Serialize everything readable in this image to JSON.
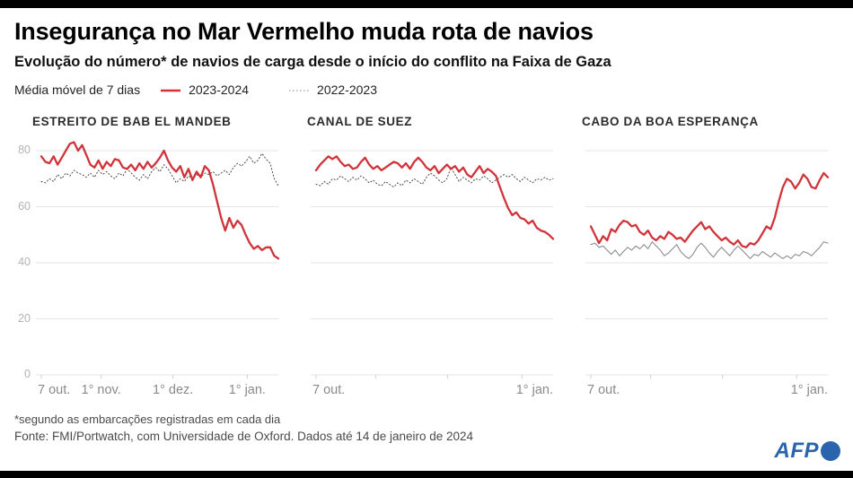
{
  "header": {
    "title": "Insegurança no Mar Vermelho muda rota de navios",
    "subtitle": "Evolução do número* de navios de carga desde o início do conflito na Faixa de Gaza"
  },
  "legend": {
    "label": "Média móvel de 7 dias",
    "series": [
      {
        "name": "2023-2024",
        "color": "#d0343a",
        "style": "solid"
      },
      {
        "name": "2022-2023",
        "color": "#b5b5b5",
        "style": "dotted"
      }
    ]
  },
  "footer": {
    "note": "*segundo as embarcações registradas em cada dia",
    "source": "Fonte: FMI/Portwatch, com Universidade de Oxford. Dados até 14 de janeiro de 2024",
    "logo_text": "AFP",
    "logo_color": "#2a64ad"
  },
  "chart_data": [
    {
      "type": "line",
      "title": "ESTREITO DE BAB EL MANDEB",
      "ylabel": "",
      "xlabel": "",
      "ylim": [
        0,
        84
      ],
      "y_ticks": [
        0,
        20,
        40,
        60,
        80
      ],
      "show_y_labels": true,
      "day_span": 99,
      "x_ticks": [
        {
          "text": "7 out.",
          "day": 0,
          "align": "left"
        },
        {
          "text": "1° nov.",
          "day": 25,
          "align": "center"
        },
        {
          "text": "1° dez.",
          "day": 55,
          "align": "center"
        },
        {
          "text": "1° jan.",
          "day": 86,
          "align": "center"
        }
      ],
      "series": [
        {
          "name": "2022-2023",
          "color": "#4a4a4a",
          "style": "dotted",
          "width": 1,
          "values": [
            69,
            68.5,
            70,
            69,
            71.5,
            70,
            72,
            71,
            73,
            72,
            71.5,
            70.5,
            72,
            70.5,
            73,
            71.5,
            72.5,
            71,
            70,
            72,
            71,
            73.5,
            72,
            70.5,
            69.5,
            71.5,
            70,
            72.5,
            74,
            72.5,
            75,
            73.5,
            71,
            68.5,
            70,
            69,
            71,
            70,
            71.5,
            70.5,
            72,
            71.5,
            72.5,
            71,
            72,
            73,
            71.5,
            74,
            75.5,
            74.5,
            76,
            78,
            75.5,
            76.5,
            79,
            77,
            75.5,
            70,
            67.5
          ]
        },
        {
          "name": "2023-2024",
          "color": "#d0343a",
          "style": "solid",
          "width": 2.3,
          "values": [
            78,
            76,
            75.5,
            78,
            75,
            77.5,
            80,
            82.5,
            83,
            80,
            82,
            78.5,
            75,
            74,
            76.5,
            73.5,
            76,
            74.5,
            77,
            76.5,
            74,
            73.5,
            75,
            73,
            75.5,
            73.5,
            76,
            74,
            75.5,
            77.5,
            80,
            76.5,
            74,
            72.5,
            74.5,
            70.5,
            73.5,
            69.5,
            72.5,
            70.5,
            74.5,
            73,
            68,
            62,
            56,
            51.5,
            56,
            52.5,
            55,
            53.5,
            50,
            47,
            45,
            46,
            44.5,
            45.5,
            45.5,
            42.5,
            41.5
          ]
        }
      ]
    },
    {
      "type": "line",
      "title": "CANAL DE SUEZ",
      "ylabel": "",
      "xlabel": "",
      "ylim": [
        0,
        84
      ],
      "y_ticks": [
        0,
        20,
        40,
        60,
        80
      ],
      "show_y_labels": false,
      "day_span": 99,
      "x_ticks": [
        {
          "text": "7 out.",
          "day": 0,
          "align": "left"
        },
        {
          "text": "1° jan.",
          "day": 86,
          "align": "right"
        }
      ],
      "series": [
        {
          "name": "2022-2023",
          "color": "#4a4a4a",
          "style": "dotted",
          "width": 1,
          "values": [
            68,
            67.5,
            69,
            68,
            70,
            69.5,
            71,
            70,
            69,
            70.5,
            69.5,
            71,
            70,
            68.5,
            69.5,
            68,
            67.5,
            69,
            68,
            67,
            68.5,
            67.5,
            69.5,
            68.5,
            70,
            69,
            68,
            70.5,
            72,
            71,
            69.5,
            68.5,
            70,
            74,
            71.5,
            69,
            70.5,
            69.5,
            68.5,
            70,
            69.5,
            71,
            70,
            68.5,
            69.5,
            70.5,
            71.5,
            70.5,
            71.5,
            70,
            69,
            70.5,
            69.5,
            68.5,
            70,
            69.5,
            70.5,
            69.5,
            70
          ]
        },
        {
          "name": "2023-2024",
          "color": "#d0343a",
          "style": "solid",
          "width": 2.3,
          "values": [
            73,
            75,
            76.5,
            78,
            77,
            78,
            76,
            74.5,
            75,
            73.5,
            74,
            76,
            77.5,
            75,
            73.5,
            74.5,
            73,
            74,
            75,
            76,
            75.5,
            74,
            75.5,
            73.5,
            76,
            77.5,
            76,
            74,
            73,
            74.5,
            72,
            73.5,
            75,
            73.5,
            74.5,
            72.5,
            74,
            71.5,
            70.5,
            72.5,
            74.5,
            72,
            73.5,
            72.5,
            71,
            67,
            63,
            59.5,
            57,
            58,
            56,
            55.5,
            54,
            55,
            52.5,
            51.5,
            51,
            50,
            48.5
          ]
        }
      ]
    },
    {
      "type": "line",
      "title": "CABO DA BOA ESPERANÇA",
      "ylabel": "",
      "xlabel": "",
      "ylim": [
        0,
        84
      ],
      "y_ticks": [
        0,
        20,
        40,
        60,
        80
      ],
      "show_y_labels": false,
      "day_span": 99,
      "x_ticks": [
        {
          "text": "7 out.",
          "day": 0,
          "align": "left"
        },
        {
          "text": "1° jan.",
          "day": 86,
          "align": "right"
        }
      ],
      "series": [
        {
          "name": "2022-2023",
          "color": "#8c8c8c",
          "style": "solid",
          "width": 1.1,
          "values": [
            46.5,
            47,
            45.5,
            46,
            44.5,
            43,
            44.5,
            42.5,
            44,
            45.5,
            44.5,
            46,
            45,
            46.5,
            45,
            47.5,
            46,
            44.5,
            42.5,
            43.5,
            45,
            46.5,
            44,
            42.5,
            41.5,
            43,
            45.5,
            47,
            45.5,
            43.5,
            42,
            44,
            45.5,
            44,
            42.5,
            44.5,
            46,
            44.5,
            43,
            41.5,
            43,
            42.5,
            44,
            43,
            42,
            43.5,
            42.5,
            41.5,
            42.5,
            41.5,
            43,
            42.5,
            44,
            43.5,
            42.5,
            44,
            45.5,
            47.5,
            47
          ]
        },
        {
          "name": "2023-2024",
          "color": "#d0343a",
          "style": "solid",
          "width": 2.3,
          "values": [
            53,
            50,
            47,
            49.5,
            48,
            52,
            51,
            53.5,
            55,
            54.5,
            53,
            53.5,
            51,
            50,
            51.5,
            49,
            48,
            49.5,
            48.5,
            51,
            50,
            48.5,
            49,
            47.5,
            49.5,
            51.5,
            53,
            54.5,
            52,
            53,
            51,
            49.5,
            48,
            49,
            47.5,
            46.5,
            48,
            46,
            45.5,
            47,
            46.5,
            48,
            50.5,
            53,
            52,
            56,
            62,
            67,
            70,
            69,
            66.5,
            68.5,
            71.5,
            70,
            67,
            66.5,
            69.5,
            72,
            70.5
          ]
        }
      ]
    }
  ]
}
